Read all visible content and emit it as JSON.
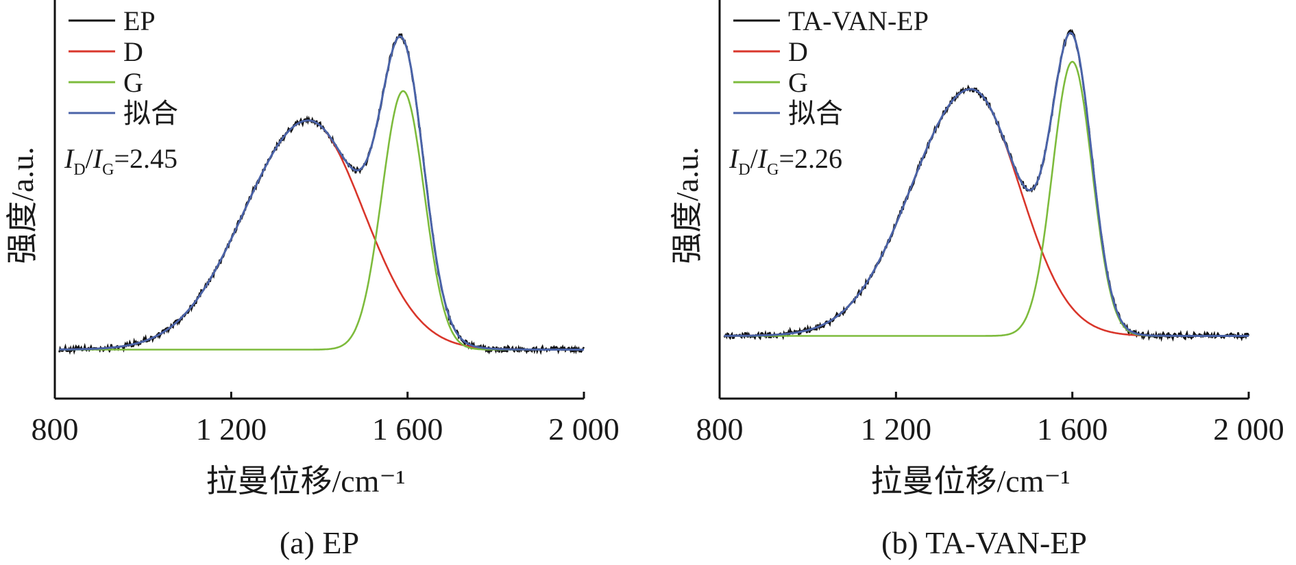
{
  "chart_data": [
    {
      "type": "line",
      "caption": "(a) EP",
      "xlabel": "拉曼位移/cm⁻¹",
      "ylabel": "强度/a.u.",
      "xlim": [
        800,
        2000
      ],
      "ylim": [
        0,
        1
      ],
      "xticks": [
        800,
        1200,
        1600,
        2000
      ],
      "xtick_labels": [
        "800",
        "1 200",
        "1 600",
        "2 000"
      ],
      "yticks_shown": false,
      "grid": false,
      "legend_position": "top-left",
      "ratio_text": {
        "I1": "I",
        "sub1": "D",
        "slash": "/",
        "I2": "I",
        "sub2": "G",
        "value": "=2.45"
      },
      "baseline": 0.125,
      "peaks": {
        "D": {
          "center": 1375,
          "height": 0.585,
          "width_left": 145,
          "width_right": 125
        },
        "G": {
          "center": 1590,
          "height": 0.66,
          "width": 48
        }
      },
      "noise_amplitude": 0.012,
      "series": [
        {
          "name": "EP",
          "color": "#111111",
          "role": "raw"
        },
        {
          "name": "D",
          "color": "#d9362b",
          "role": "D"
        },
        {
          "name": "G",
          "color": "#7dbb3c",
          "role": "G"
        },
        {
          "name": "拟合",
          "color": "#4a63a8",
          "role": "fit"
        }
      ]
    },
    {
      "type": "line",
      "caption": "(b) TA-VAN-EP",
      "xlabel": "拉曼位移/cm⁻¹",
      "ylabel": "强度/a.u.",
      "xlim": [
        800,
        2000
      ],
      "ylim": [
        0,
        1
      ],
      "xticks": [
        800,
        1200,
        1600,
        2000
      ],
      "xtick_labels": [
        "800",
        "1 200",
        "1 600",
        "2 000"
      ],
      "yticks_shown": false,
      "grid": false,
      "legend_position": "top-left",
      "ratio_text": {
        "I1": "I",
        "sub1": "D",
        "slash": "/",
        "I2": "I",
        "sub2": "G",
        "value": "=2.26"
      },
      "baseline": 0.16,
      "peaks": {
        "D": {
          "center": 1370,
          "height": 0.63,
          "width_left": 135,
          "width_right": 110
        },
        "G": {
          "center": 1600,
          "height": 0.7,
          "width": 45
        }
      },
      "noise_amplitude": 0.012,
      "series": [
        {
          "name": "TA-VAN-EP",
          "color": "#111111",
          "role": "raw"
        },
        {
          "name": "D",
          "color": "#d9362b",
          "role": "D"
        },
        {
          "name": "G",
          "color": "#7dbb3c",
          "role": "G"
        },
        {
          "name": "拟合",
          "color": "#4a63a8",
          "role": "fit"
        }
      ]
    }
  ]
}
